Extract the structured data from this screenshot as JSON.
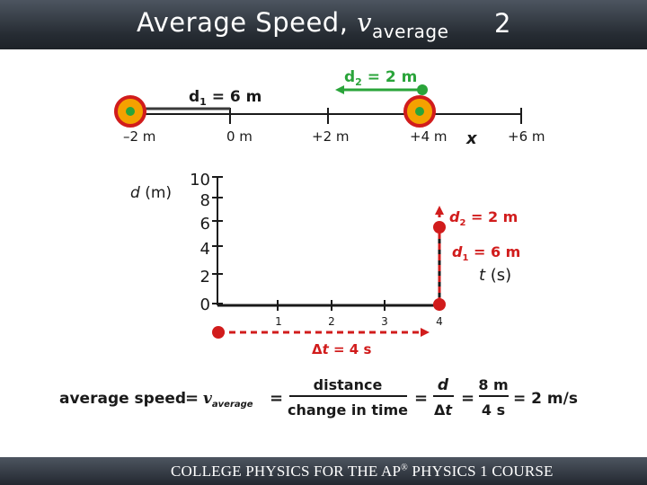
{
  "slide": {
    "title_main": "Average Speed, ",
    "title_var": "v",
    "title_sub": "average",
    "number": "2"
  },
  "position_line": {
    "ticks": [
      "–2 m",
      "0 m",
      "+2 m",
      "+4 m",
      "+6 m"
    ],
    "axis_var": "x",
    "d1_label": {
      "name": "d",
      "sub": "1",
      "value": " = 6 m"
    },
    "d2_label": {
      "name": "d",
      "sub": "2",
      "value": " = 2 m"
    },
    "colors": {
      "d1_arrow": "#3a3a3a",
      "d2_arrow": "#2aa43a",
      "object_fill": "#f5a100",
      "object_ring": "#d11c1c",
      "object_center": "#2aa43a"
    }
  },
  "graph": {
    "y_label_var": "d",
    "y_label_unit": " (m)",
    "y_ticks": [
      "10",
      "8",
      "6",
      "4",
      "2",
      "0"
    ],
    "x_ticks": [
      "1",
      "2",
      "3",
      "4"
    ],
    "x_label_var": "t",
    "x_label_unit": " (s)",
    "d2_label": {
      "name": "d",
      "sub": "2",
      "value": " = 2 m"
    },
    "d1_label": {
      "name": "d",
      "sub": "1",
      "value": " = 6 m"
    },
    "dt_label": {
      "prefix": "Δ",
      "var": "t",
      "value": " = 4 s"
    },
    "colors": {
      "line": "#1a1a1a",
      "marker": "#d11c1c",
      "label": "#d11c1c",
      "dashed": "#d11c1c"
    }
  },
  "equation": {
    "lhs": "average speed",
    "v": "v",
    "v_sub": "average",
    "num1": "distance",
    "den1": "change in time",
    "num2": "d",
    "den2_prefix": "Δ",
    "den2_var": "t",
    "num3": "8 m",
    "den3": "4 s",
    "result": "= 2 m/s",
    "eq": "="
  },
  "footer": {
    "text_before": "COLLEGE PHYSICS FOR THE AP",
    "reg": "®",
    "text_after": " PHYSICS 1 COURSE"
  }
}
